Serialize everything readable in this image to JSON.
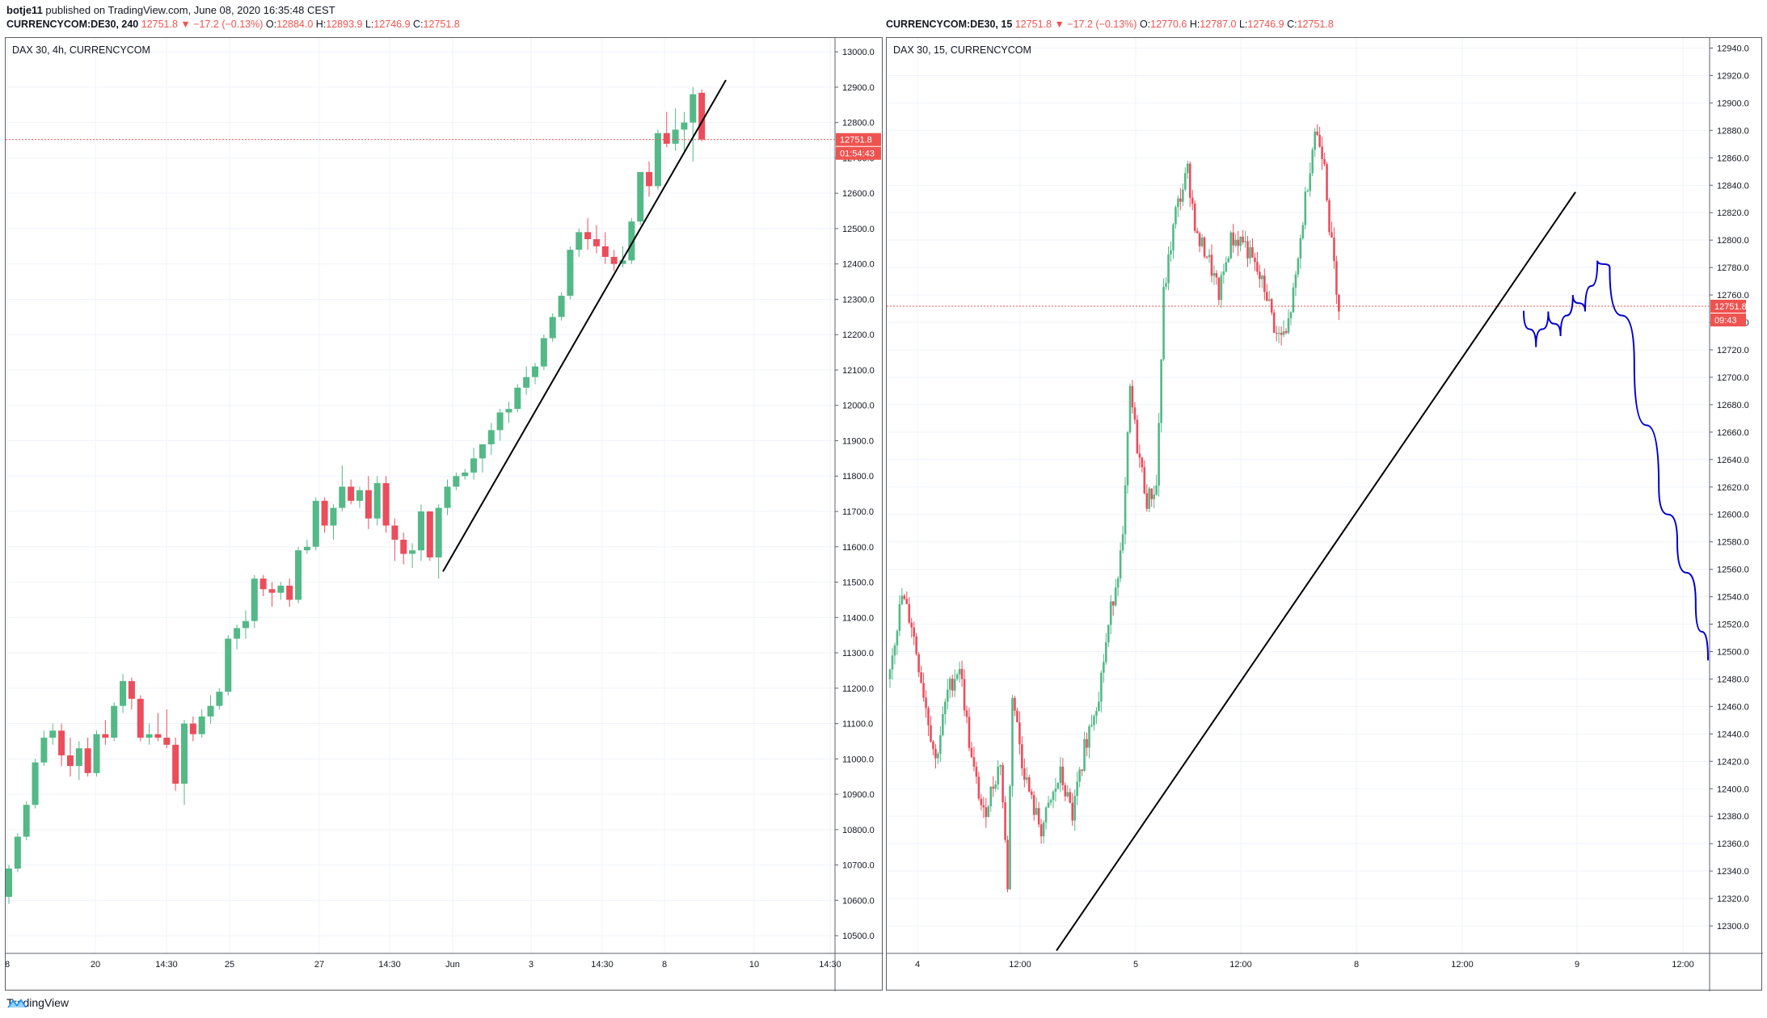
{
  "header": {
    "author": "botje11",
    "published": "published on TradingView.com, June 08, 2020 16:35:48 CEST"
  },
  "footer": {
    "brand": "TradingView",
    "logo_icon": "tradingview-logo-icon"
  },
  "colors": {
    "up": "#53b987",
    "down": "#eb4d5c",
    "grid": "#f0f3fa",
    "price_line": "#ef5350",
    "trendline": "#000000",
    "drawing": "#0000cc"
  },
  "chart_data": [
    {
      "type": "candlestick",
      "title": "DAX 30, 4h, CURRENCYCOM",
      "ohlc_bar": {
        "symbol": "CURRENCYCOM:DE30, 240",
        "last": "12751.8",
        "change": "▼ −17.2 (−0.13%)",
        "open": "12884.0",
        "high": "12893.9",
        "low": "12746.9",
        "close": "12751.8"
      },
      "ylim": [
        10450,
        13030
      ],
      "y_ticks": [
        "10500.0",
        "10600.0",
        "10700.0",
        "10800.0",
        "10900.0",
        "11000.0",
        "11100.0",
        "11200.0",
        "11300.0",
        "11400.0",
        "11500.0",
        "11600.0",
        "11700.0",
        "11800.0",
        "11900.0",
        "12000.0",
        "12100.0",
        "12200.0",
        "12300.0",
        "12400.0",
        "12500.0",
        "12600.0",
        "12700.0",
        "12800.0",
        "12900.0",
        "13000.0"
      ],
      "x_ticks": [
        "8",
        "20",
        "14:30",
        "25",
        "27",
        "14:30",
        "Jun",
        "3",
        "14:30",
        "8",
        "10",
        "14:30"
      ],
      "last_price": "12751.8",
      "countdown": "01:54:43",
      "candles": [
        [
          10610,
          10700,
          10590,
          10690
        ],
        [
          10690,
          10790,
          10680,
          10780
        ],
        [
          10780,
          10880,
          10770,
          10870
        ],
        [
          10870,
          11000,
          10860,
          10990
        ],
        [
          10990,
          11080,
          10980,
          11060
        ],
        [
          11060,
          11100,
          11040,
          11080
        ],
        [
          11080,
          11100,
          10980,
          11010
        ],
        [
          11010,
          11060,
          10950,
          10980
        ],
        [
          10980,
          11050,
          10940,
          11030
        ],
        [
          11030,
          11060,
          10950,
          10960
        ],
        [
          10960,
          11080,
          10950,
          11070
        ],
        [
          11070,
          11110,
          11040,
          11060
        ],
        [
          11060,
          11160,
          11050,
          11150
        ],
        [
          11150,
          11240,
          11130,
          11220
        ],
        [
          11220,
          11230,
          11140,
          11170
        ],
        [
          11170,
          11180,
          11050,
          11060
        ],
        [
          11060,
          11100,
          11040,
          11070
        ],
        [
          11070,
          11130,
          11050,
          11060
        ],
        [
          11060,
          11140,
          11030,
          11040
        ],
        [
          11040,
          11060,
          10910,
          10930
        ],
        [
          10930,
          11110,
          10870,
          11100
        ],
        [
          11100,
          11120,
          11050,
          11070
        ],
        [
          11070,
          11140,
          11060,
          11120
        ],
        [
          11120,
          11180,
          11100,
          11150
        ],
        [
          11150,
          11200,
          11140,
          11190
        ],
        [
          11190,
          11350,
          11180,
          11340
        ],
        [
          11340,
          11380,
          11310,
          11370
        ],
        [
          11370,
          11420,
          11340,
          11390
        ],
        [
          11390,
          11520,
          11370,
          11510
        ],
        [
          11510,
          11520,
          11460,
          11480
        ],
        [
          11480,
          11500,
          11430,
          11470
        ],
        [
          11470,
          11500,
          11450,
          11490
        ],
        [
          11490,
          11510,
          11430,
          11450
        ],
        [
          11450,
          11600,
          11440,
          11590
        ],
        [
          11590,
          11620,
          11580,
          11600
        ],
        [
          11600,
          11740,
          11590,
          11730
        ],
        [
          11730,
          11740,
          11640,
          11660
        ],
        [
          11660,
          11720,
          11620,
          11710
        ],
        [
          11710,
          11830,
          11700,
          11770
        ],
        [
          11770,
          11790,
          11720,
          11730
        ],
        [
          11730,
          11770,
          11710,
          11760
        ],
        [
          11760,
          11800,
          11650,
          11680
        ],
        [
          11680,
          11800,
          11660,
          11780
        ],
        [
          11780,
          11800,
          11640,
          11660
        ],
        [
          11660,
          11680,
          11560,
          11620
        ],
        [
          11620,
          11640,
          11550,
          11580
        ],
        [
          11580,
          11610,
          11540,
          11590
        ],
        [
          11590,
          11720,
          11560,
          11700
        ],
        [
          11700,
          11690,
          11560,
          11570
        ],
        [
          11570,
          11720,
          11510,
          11710
        ],
        [
          11710,
          11790,
          11690,
          11770
        ],
        [
          11770,
          11810,
          11760,
          11800
        ],
        [
          11800,
          11820,
          11790,
          11810
        ],
        [
          11810,
          11880,
          11790,
          11850
        ],
        [
          11850,
          11870,
          11810,
          11890
        ],
        [
          11890,
          11950,
          11860,
          11930
        ],
        [
          11930,
          11990,
          11900,
          11980
        ],
        [
          11980,
          12010,
          11950,
          11990
        ],
        [
          11990,
          12060,
          11980,
          12050
        ],
        [
          12050,
          12110,
          12030,
          12080
        ],
        [
          12080,
          12120,
          12060,
          12110
        ],
        [
          12110,
          12200,
          12100,
          12190
        ],
        [
          12190,
          12260,
          12180,
          12250
        ],
        [
          12250,
          12320,
          12240,
          12310
        ],
        [
          12310,
          12450,
          12300,
          12440
        ],
        [
          12440,
          12500,
          12420,
          12490
        ],
        [
          12490,
          12530,
          12440,
          12470
        ],
        [
          12470,
          12510,
          12430,
          12450
        ],
        [
          12450,
          12490,
          12400,
          12420
        ],
        [
          12420,
          12440,
          12380,
          12400
        ],
        [
          12400,
          12450,
          12390,
          12410
        ],
        [
          12410,
          12530,
          12400,
          12520
        ],
        [
          12520,
          12660,
          12510,
          12660
        ],
        [
          12660,
          12690,
          12590,
          12620
        ],
        [
          12620,
          12780,
          12610,
          12770
        ],
        [
          12770,
          12830,
          12730,
          12740
        ],
        [
          12740,
          12840,
          12720,
          12780
        ],
        [
          12780,
          12830,
          12720,
          12800
        ],
        [
          12800,
          12900,
          12690,
          12880
        ],
        [
          12884,
          12893.9,
          12746.9,
          12751.8
        ]
      ],
      "trendline": {
        "from": [
          "May 29",
          11530
        ],
        "to": [
          "Jun 8",
          12920
        ]
      }
    },
    {
      "type": "candlestick",
      "title": "DAX 30, 15, CURRENCYCOM",
      "ohlc_bar": {
        "symbol": "CURRENCYCOM:DE30, 15",
        "last": "12751.8",
        "change": "▼ −17.2 (−0.13%)",
        "open": "12770.6",
        "high": "12787.0",
        "low": "12746.9",
        "close": "12751.8"
      },
      "ylim": [
        12280,
        12945
      ],
      "y_ticks": [
        "12300.0",
        "12320.0",
        "12340.0",
        "12360.0",
        "12380.0",
        "12400.0",
        "12420.0",
        "12440.0",
        "12460.0",
        "12480.0",
        "12500.0",
        "12520.0",
        "12540.0",
        "12560.0",
        "12580.0",
        "12600.0",
        "12620.0",
        "12640.0",
        "12660.0",
        "12680.0",
        "12700.0",
        "12720.0",
        "12740.0",
        "12760.0",
        "12780.0",
        "12800.0",
        "12820.0",
        "12840.0",
        "12860.0",
        "12880.0",
        "12900.0",
        "12920.0",
        "12940.0"
      ],
      "x_ticks": [
        "4",
        "12:00",
        "5",
        "12:00",
        "8",
        "12:00",
        "9",
        "12:00"
      ],
      "last_price": "12751.8",
      "countdown": "09:43",
      "trendline": {
        "from": [
          "Jun 4 14:00",
          12282
        ],
        "to": [
          "Jun 9 00:00",
          12835
        ]
      },
      "forecast_path": [
        [
          12748,
          0
        ],
        [
          12722,
          4
        ],
        [
          12748,
          8
        ],
        [
          12730,
          12
        ],
        [
          12760,
          16
        ],
        [
          12748,
          20
        ],
        [
          12785,
          24
        ],
        [
          12780,
          28
        ],
        [
          12710,
          36
        ],
        [
          12620,
          44
        ],
        [
          12580,
          50
        ],
        [
          12535,
          56
        ],
        [
          12494,
          60
        ]
      ]
    }
  ]
}
